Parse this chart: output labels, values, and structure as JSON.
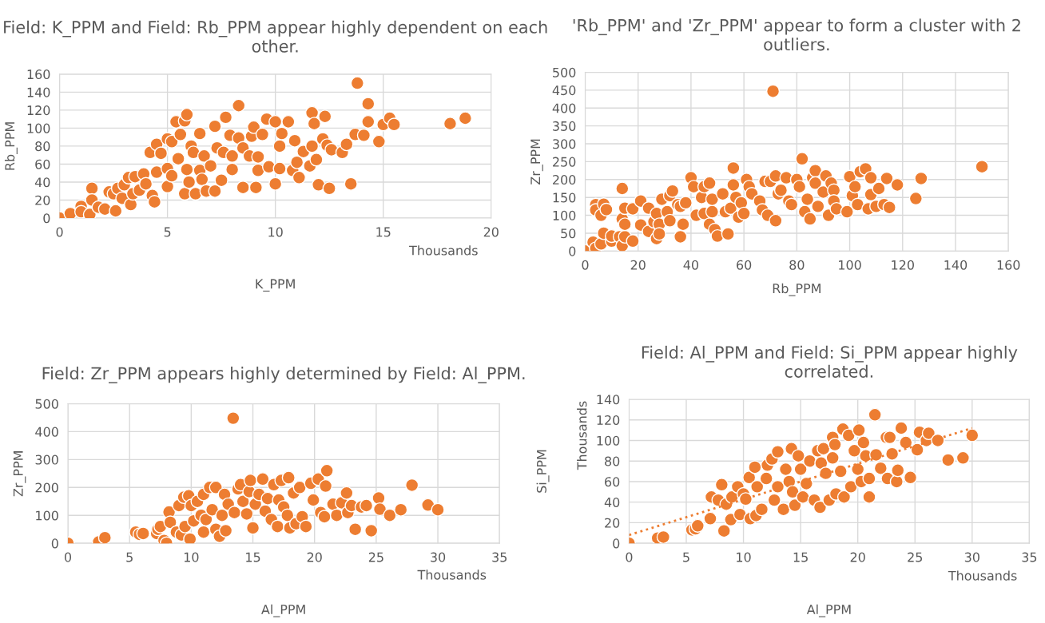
{
  "chart_data": [
    {
      "type": "scatter",
      "title": "Field: K_PPM and Field: Rb_PPM appear highly dependent on each other.",
      "xlabel": "K_PPM",
      "ylabel": "Rb_PPM",
      "annotations": [
        "Thousands"
      ],
      "xlim": [
        0,
        20
      ],
      "xticks": [
        0,
        5,
        10,
        15,
        20
      ],
      "ylim": [
        0,
        160
      ],
      "yticks": [
        0,
        20,
        40,
        60,
        80,
        100,
        120,
        140,
        160
      ],
      "grid": true,
      "marker": "circle",
      "series": [
        {
          "color": "#ed7d31",
          "x": [
            0,
            0.5,
            1,
            1,
            1.4,
            1.5,
            1.5,
            1.8,
            2.1,
            2.3,
            2.5,
            2.6,
            2.7,
            2.9,
            3,
            3.2,
            3.3,
            3.5,
            3.4,
            3.7,
            3.9,
            4,
            4.2,
            4.3,
            4.4,
            4.5,
            4.5,
            4.7,
            5,
            5,
            5,
            5.2,
            5.2,
            5.4,
            5.5,
            5.6,
            5.8,
            5.8,
            5.9,
            5.9,
            6,
            6.1,
            6.2,
            6.3,
            6.5,
            6.5,
            6.6,
            6.7,
            6.8,
            7,
            7.2,
            7.2,
            7.3,
            7.5,
            7.6,
            7.7,
            7.9,
            8,
            8,
            8.3,
            8.3,
            8.5,
            8.5,
            8.8,
            8.9,
            9,
            9.1,
            9.2,
            9.2,
            9.4,
            9.6,
            9.7,
            10,
            10,
            10.2,
            10.2,
            10.3,
            10.6,
            10.8,
            10.9,
            11,
            11.1,
            11.3,
            11.6,
            11.7,
            11.7,
            11.8,
            11.9,
            12,
            12.2,
            12.3,
            12.4,
            12.5,
            12.6,
            13.1,
            13.3,
            13.5,
            13.7,
            13.8,
            14.1,
            14.3,
            14.3,
            14.8,
            15,
            15.3,
            15.5,
            18.1,
            18.8
          ],
          "values": [
            0,
            5,
            13,
            7,
            4,
            33,
            20,
            12,
            10,
            29,
            27,
            8,
            33,
            22,
            37,
            45,
            15,
            46,
            27,
            31,
            49,
            38,
            73,
            25,
            18,
            51,
            82,
            72,
            88,
            55,
            35,
            85,
            47,
            107,
            66,
            93,
            108,
            27,
            115,
            54,
            40,
            80,
            73,
            27,
            94,
            53,
            43,
            69,
            30,
            58,
            102,
            30,
            78,
            42,
            73,
            112,
            92,
            54,
            69,
            125,
            89,
            78,
            34,
            69,
            91,
            101,
            34,
            68,
            53,
            93,
            110,
            57,
            107,
            38,
            80,
            55,
            94,
            107,
            53,
            86,
            62,
            45,
            74,
            58,
            117,
            80,
            105,
            65,
            37,
            88,
            113,
            81,
            33,
            76,
            73,
            82,
            38,
            93,
            150,
            92,
            127,
            107,
            85,
            104,
            111,
            104,
            105,
            111
          ]
        }
      ]
    },
    {
      "type": "scatter",
      "title": "'Rb_PPM' and 'Zr_PPM' appear to form a cluster with 2 outliers.",
      "xlabel": "Rb_PPM",
      "ylabel": "Zr_PPM",
      "xlim": [
        0,
        160
      ],
      "xticks": [
        0,
        20,
        40,
        60,
        80,
        100,
        120,
        140,
        160
      ],
      "ylim": [
        0,
        500
      ],
      "yticks": [
        0,
        50,
        100,
        150,
        200,
        250,
        300,
        350,
        400,
        450,
        500
      ],
      "grid": true,
      "marker": "circle",
      "series": [
        {
          "color": "#ed7d31",
          "x": [
            0,
            3,
            4,
            4,
            4,
            6,
            6,
            7,
            7,
            8,
            10,
            10,
            13,
            14,
            14,
            14,
            15,
            15,
            15,
            18,
            18,
            21,
            21,
            24,
            24,
            26,
            27,
            27,
            28,
            28,
            29,
            31,
            32,
            32,
            33,
            35,
            36,
            36,
            37,
            38,
            40,
            41,
            42,
            44,
            45,
            45,
            47,
            47,
            48,
            48,
            49,
            50,
            52,
            53,
            54,
            55,
            56,
            56,
            57,
            58,
            59,
            60,
            61,
            62,
            63,
            66,
            67,
            68,
            69,
            70,
            71,
            72,
            72,
            73,
            74,
            76,
            77,
            78,
            80,
            81,
            82,
            83,
            84,
            85,
            86,
            87,
            87,
            88,
            90,
            91,
            92,
            93,
            94,
            94,
            95,
            99,
            100,
            101,
            102,
            103,
            104,
            106,
            107,
            108,
            108,
            110,
            111,
            113,
            114,
            115,
            118,
            125,
            127,
            150
          ],
          "values": [
            0,
            25,
            8,
            130,
            115,
            100,
            20,
            50,
            131,
            116,
            28,
            42,
            40,
            175,
            90,
            15,
            120,
            40,
            75,
            118,
            28,
            73,
            140,
            55,
            120,
            82,
            105,
            35,
            75,
            48,
            145,
            110,
            85,
            155,
            168,
            130,
            40,
            125,
            75,
            135,
            205,
            180,
            100,
            150,
            180,
            105,
            75,
            190,
            110,
            145,
            60,
            42,
            160,
            110,
            48,
            120,
            232,
            185,
            150,
            95,
            135,
            105,
            200,
            180,
            160,
            140,
            115,
            195,
            100,
            195,
            447,
            210,
            85,
            160,
            170,
            205,
            140,
            130,
            200,
            180,
            258,
            110,
            145,
            90,
            205,
            225,
            190,
            125,
            165,
            210,
            100,
            190,
            170,
            140,
            118,
            110,
            208,
            155,
            180,
            130,
            222,
            230,
            118,
            205,
            158,
            125,
            175,
            130,
            203,
            122,
            185,
            147,
            203,
            236
          ]
        }
      ]
    },
    {
      "type": "scatter",
      "title": "Field: Zr_PPM appears highly determined by Field: Al_PPM.",
      "xlabel": "Al_PPM",
      "ylabel": "Zr_PPM",
      "annotations": [
        "Thousands"
      ],
      "xlim": [
        0,
        35
      ],
      "xticks": [
        0,
        5,
        10,
        15,
        20,
        25,
        30,
        35
      ],
      "ylim": [
        0,
        500
      ],
      "yticks": [
        0,
        100,
        200,
        300,
        400,
        500
      ],
      "grid": true,
      "marker": "circle",
      "series": [
        {
          "color": "#ed7d31",
          "x": [
            0,
            2.5,
            3,
            5.5,
            5.8,
            6.1,
            7.2,
            7.3,
            7.5,
            7.8,
            8,
            8.2,
            8.3,
            8.8,
            9,
            9.2,
            9.4,
            9.5,
            9.8,
            9.9,
            10,
            10.2,
            10.5,
            10.8,
            11,
            11,
            11.2,
            11.5,
            11.7,
            12,
            12,
            12.3,
            12.5,
            12.7,
            12.8,
            13,
            13.4,
            13.5,
            13.8,
            14,
            14.2,
            14.5,
            14.7,
            14.8,
            15,
            15.2,
            15.5,
            15.8,
            16,
            16.2,
            16.5,
            16.7,
            17,
            17.1,
            17.3,
            17.5,
            17.8,
            17.9,
            18,
            18.3,
            18.5,
            18.8,
            19,
            19.3,
            19.7,
            19.9,
            20.3,
            20.5,
            20.8,
            20.9,
            21,
            21.5,
            21.8,
            22.2,
            22.6,
            22.7,
            23,
            23.3,
            23.8,
            24.2,
            24.6,
            25.2,
            25.3,
            26.1,
            27,
            27.9,
            29.2,
            30
          ],
          "values": [
            0,
            5,
            20,
            40,
            32,
            35,
            35,
            50,
            60,
            10,
            0,
            112,
            75,
            40,
            135,
            30,
            165,
            60,
            170,
            15,
            135,
            80,
            150,
            100,
            175,
            40,
            85,
            200,
            120,
            200,
            50,
            25,
            100,
            175,
            45,
            140,
            448,
            110,
            195,
            210,
            150,
            105,
            185,
            225,
            55,
            140,
            175,
            230,
            115,
            160,
            85,
            210,
            60,
            155,
            225,
            130,
            100,
            235,
            55,
            180,
            70,
            200,
            95,
            60,
            215,
            155,
            230,
            110,
            95,
            205,
            260,
            140,
            100,
            145,
            180,
            110,
            135,
            50,
            130,
            135,
            45,
            162,
            122,
            100,
            120,
            208,
            137,
            120
          ]
        }
      ]
    },
    {
      "type": "scatter",
      "title": "Field: Al_PPM and Field: Si_PPM appear highly correlated.",
      "xlabel": "Al_PPM",
      "ylabel": "Si_PPM",
      "annotations": [
        "Thousands",
        "Thousands"
      ],
      "xlim": [
        0,
        35
      ],
      "xticks": [
        0,
        5,
        10,
        15,
        20,
        25,
        30,
        35
      ],
      "ylim": [
        0,
        140
      ],
      "yticks": [
        0,
        20,
        40,
        60,
        80,
        100,
        120,
        140
      ],
      "grid": true,
      "marker": "circle",
      "series": [
        {
          "color": "#ed7d31",
          "x": [
            0,
            2.5,
            3,
            5.5,
            5.8,
            6,
            7.1,
            7.2,
            7.8,
            8.1,
            8.3,
            8.5,
            8.9,
            9,
            9.5,
            9.7,
            10,
            10.2,
            10.5,
            10.6,
            11,
            11.1,
            11.2,
            11.6,
            12,
            12.1,
            12.5,
            12.7,
            13,
            13,
            13.5,
            13.7,
            14,
            14.2,
            14.3,
            14.5,
            14.8,
            15,
            15.2,
            15.5,
            15.8,
            16.2,
            16.5,
            16.7,
            16.8,
            17,
            17.2,
            17.5,
            17.8,
            17.8,
            18,
            18.1,
            18.5,
            18.7,
            18.8,
            19.2,
            19.4,
            19.7,
            20,
            20.1,
            20.3,
            20.5,
            20.7,
            21,
            21,
            21.5,
            21.6,
            22,
            22.5,
            22.6,
            22.8,
            23,
            23.4,
            23.5,
            23.8,
            24.2,
            24.6,
            25.2,
            25.4,
            26,
            26.2,
            27,
            27.9,
            29.2,
            30
          ],
          "values": [
            0,
            5,
            6,
            13,
            14,
            17,
            24,
            45,
            42,
            57,
            12,
            38,
            23,
            45,
            55,
            28,
            48,
            43,
            64,
            24,
            74,
            27,
            55,
            33,
            63,
            76,
            82,
            42,
            89,
            55,
            33,
            72,
            60,
            92,
            50,
            37,
            85,
            72,
            45,
            58,
            80,
            42,
            90,
            35,
            78,
            92,
            68,
            42,
            83,
            103,
            96,
            48,
            70,
            111,
            45,
            105,
            55,
            90,
            72,
            110,
            60,
            98,
            85,
            63,
            45,
            125,
            86,
            73,
            103,
            63,
            103,
            87,
            60,
            71,
            112,
            98,
            64,
            91,
            108,
            100,
            107,
            100,
            81,
            83,
            105
          ]
        },
        {
          "type": "line",
          "color": "#ed7d31",
          "line_style": "dotted",
          "marker": "none",
          "x": [
            0,
            30
          ],
          "values": [
            8,
            112
          ]
        }
      ]
    }
  ]
}
